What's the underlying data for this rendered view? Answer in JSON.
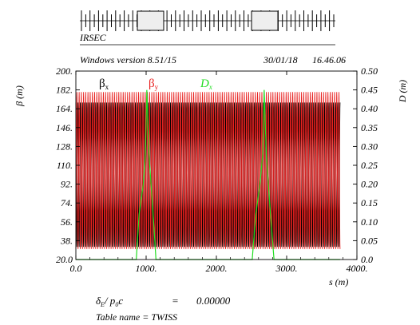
{
  "header": {
    "machine_label": "IRSEC",
    "version_text": "Windows version 8.51/15",
    "date_text": "30/01/18",
    "time_text": "16.46.06"
  },
  "footer": {
    "delta_symbol": "δ",
    "delta_sub": "E",
    "delta_mid": "/ p",
    "delta_sub2": "0",
    "delta_c": "c",
    "delta_eq": "=",
    "delta_value": "0.00000",
    "table_name": "Table name = TWISS"
  },
  "chart_data": {
    "type": "line",
    "xlabel": "s (m)",
    "ylabel_left": "β (m)",
    "ylabel_right": "D (m)",
    "xlim": [
      0,
      4000
    ],
    "ylim_left": [
      20,
      200
    ],
    "ylim_right": [
      0,
      0.5
    ],
    "x_ticks": [
      "0.0",
      "1000.",
      "2000.",
      "3000.",
      "4000."
    ],
    "y_left_ticks": [
      "20.0",
      "38.",
      "56.",
      "74.",
      "92.",
      "110.",
      "128.",
      "146.",
      "164.",
      "182.",
      "200."
    ],
    "y_right_ticks": [
      "0.0",
      "0.05",
      "0.10",
      "0.15",
      "0.20",
      "0.25",
      "0.30",
      "0.35",
      "0.40",
      "0.45",
      "0.50"
    ],
    "legend": [
      {
        "symbol": "β",
        "sub": "x",
        "color": "#000000"
      },
      {
        "symbol": "β",
        "sub": "y",
        "color": "#e8201f"
      },
      {
        "symbol": "D",
        "sub": "x",
        "color": "#22dd22"
      }
    ],
    "series": [
      {
        "name": "βx",
        "axis": "left",
        "color": "#000000",
        "x_range": [
          0,
          3760
        ],
        "periods": 120,
        "min": 32,
        "max": 170
      },
      {
        "name": "βy",
        "axis": "left",
        "color": "#e8201f",
        "x_range": [
          0,
          3760
        ],
        "periods": 120,
        "min": 30,
        "max": 180
      },
      {
        "name": "Dx",
        "axis": "right",
        "color": "#22dd22",
        "x": [
          0,
          860,
          900,
          960,
          990,
          1010,
          1040,
          1100,
          1140,
          2510,
          2560,
          2620,
          2660,
          2680,
          2710,
          2770,
          2820,
          3760
        ],
        "y": [
          0,
          0,
          0.12,
          0.2,
          0.28,
          0.45,
          0.28,
          0.12,
          0,
          0,
          0.12,
          0.2,
          0.28,
          0.45,
          0.28,
          0.12,
          0,
          0
        ]
      }
    ],
    "grid": false
  }
}
